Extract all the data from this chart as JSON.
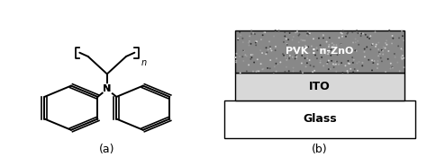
{
  "label_a": "(a)",
  "label_b": "(b)",
  "pvk_label": "PVK : n-ZnO",
  "ito_label": "ITO",
  "glass_label": "Glass",
  "layer_colors": {
    "pvk": "#888888",
    "ito": "#cccccc",
    "glass": "#ffffff"
  },
  "layer_edge_color": "#000000",
  "background": "#ffffff",
  "text_color": "#000000"
}
